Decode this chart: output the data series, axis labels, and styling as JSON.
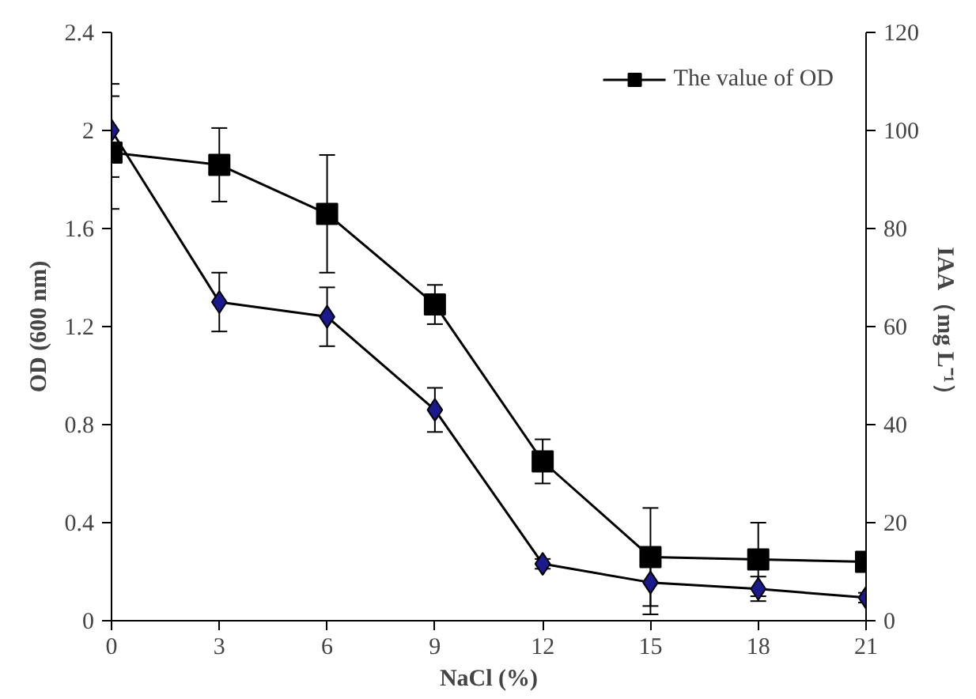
{
  "chart_data": {
    "type": "line",
    "xlabel": "NaCl (%)",
    "ylabel": "OD (600 nm)",
    "y2label": "IAA（mg L⁻¹）",
    "x": [
      0,
      3,
      6,
      9,
      12,
      15,
      18,
      21
    ],
    "xlim": [
      0,
      21
    ],
    "xticks": [
      0,
      3,
      6,
      9,
      12,
      15,
      18,
      21
    ],
    "ylim": [
      0,
      2.4
    ],
    "yticks": [
      0,
      0.4,
      0.8,
      1.2,
      1.6,
      2,
      2.4
    ],
    "y2lim": [
      0,
      120
    ],
    "y2ticks": [
      0,
      20,
      40,
      60,
      80,
      100,
      120
    ],
    "grid": false,
    "legend": "top right",
    "line_style": "solid",
    "series": [
      {
        "name": "The value of OD",
        "color": "#000000",
        "marker": "square",
        "values": [
          1.91,
          1.86,
          1.66,
          1.29,
          0.65,
          0.26,
          0.25,
          0.24
        ],
        "errors": [
          0.23,
          0.15,
          0.24,
          0.08,
          0.09,
          0.2,
          0.15,
          0.03
        ]
      },
      {
        "color": "#1a1a8c",
        "marker": "diamond",
        "axis": "y2",
        "values": [
          100,
          65,
          62,
          43,
          11.6,
          7.8,
          6.5,
          4.7
        ],
        "errors": [
          9.5,
          6,
          6,
          4.5,
          1,
          6.5,
          2.5,
          1
        ]
      }
    ]
  }
}
